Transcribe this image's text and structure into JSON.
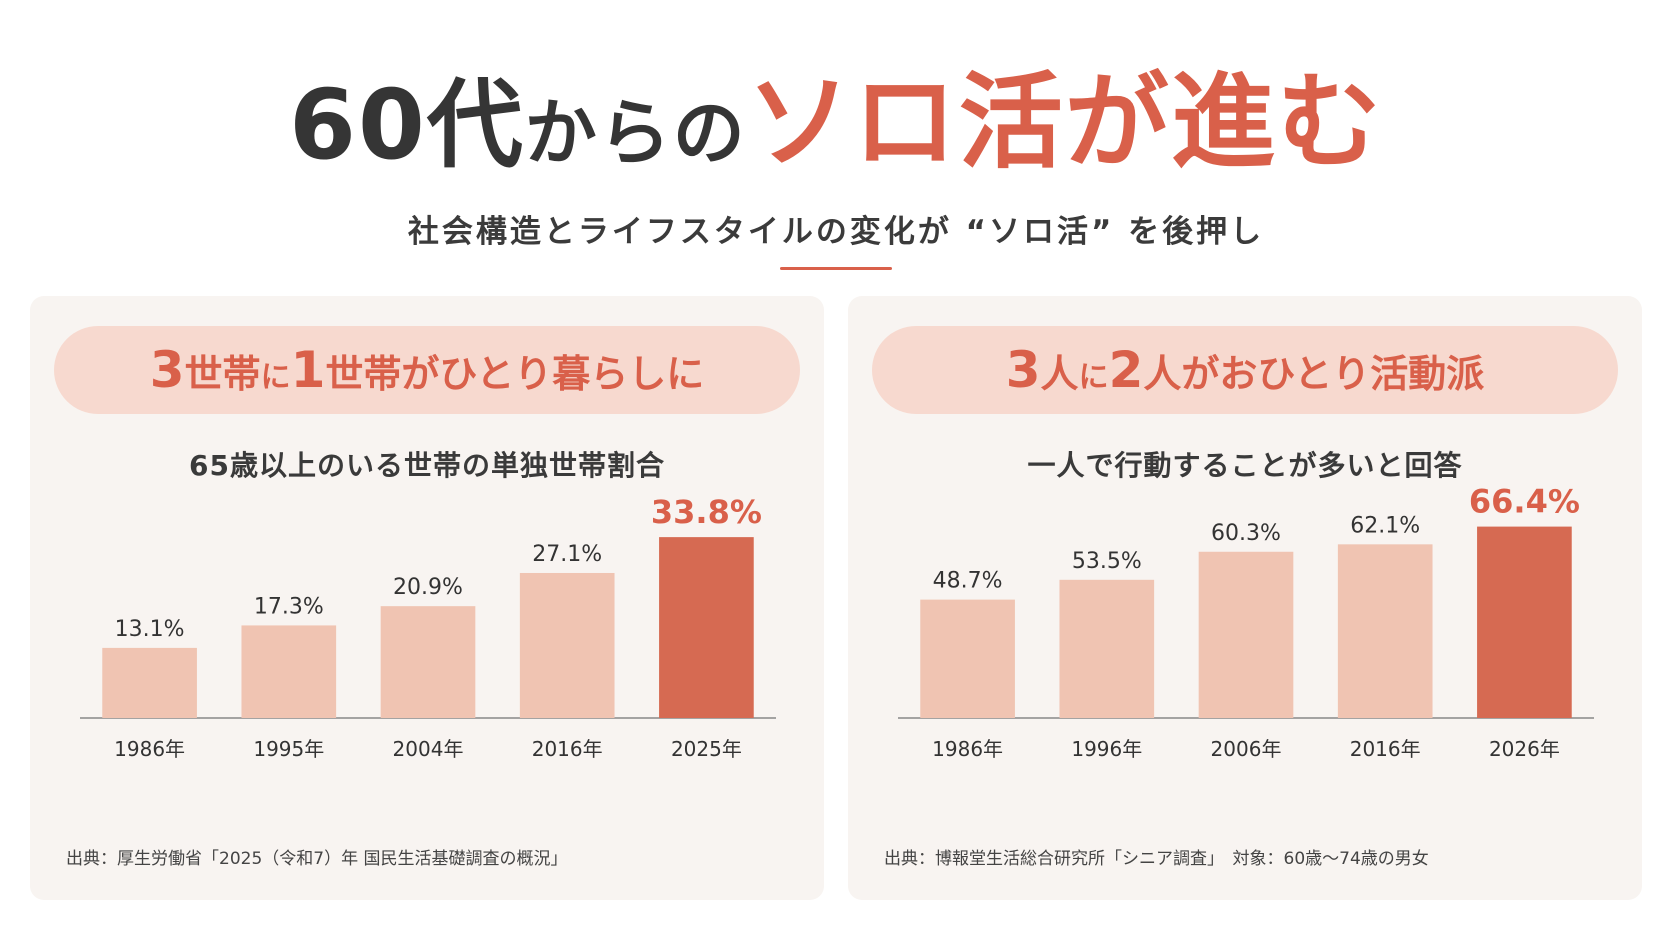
{
  "header": {
    "title_lead": "60代",
    "title_mid": "からの",
    "title_accent": "ソロ活",
    "title_particle": "が",
    "title_end": "進む",
    "subtitle": "社会構造とライフスタイルの変化が “ソロ活” を後押し"
  },
  "colors": {
    "accent": "#d9604a",
    "bar_normal": "#f0c4b2",
    "bar_highlight": "#d66a52",
    "pill": "#f7d9cf",
    "panel": "#f8f4f1"
  },
  "left_panel": {
    "headline": {
      "n1": "3",
      "w1": "世帯",
      "p1": "に",
      "n2": "1",
      "w2": "世帯",
      "rest": "がひとり暮らしに"
    },
    "chart_subtitle": "65歳以上のいる世帯の単独世帯割合",
    "source": "出典：厚生労働省「2025（令和7）年 国民生活基礎調査の概況」"
  },
  "right_panel": {
    "headline": {
      "n1": "3",
      "w1": "人",
      "p1": "に",
      "n2": "2",
      "w2": "人",
      "rest": "がおひとり活動派"
    },
    "chart_subtitle": "一人で行動することが多いと回答",
    "source": "出典：博報堂生活総合研究所「シニア調査」　対象：60歳〜74歳の男女"
  },
  "chart_data": [
    {
      "type": "bar",
      "title": "65歳以上のいる世帯の単独世帯割合",
      "categories": [
        "1986年",
        "1995年",
        "2004年",
        "2016年",
        "2025年"
      ],
      "values": [
        13.1,
        17.3,
        20.9,
        27.1,
        33.8
      ],
      "value_labels": [
        "13.1%",
        "17.3%",
        "20.9%",
        "27.1%",
        "33.8%"
      ],
      "highlight_index": 4,
      "ylim": [
        0,
        37
      ],
      "grid": false,
      "legend": "none"
    },
    {
      "type": "bar",
      "title": "一人で行動することが多いと回答",
      "categories": [
        "1986年",
        "1996年",
        "2006年",
        "2016年",
        "2026年"
      ],
      "values": [
        48.7,
        53.5,
        60.3,
        62.1,
        66.4
      ],
      "value_labels": [
        "48.7%",
        "53.5%",
        "60.3%",
        "62.1%",
        "66.4%"
      ],
      "highlight_index": 4,
      "ylim": [
        20,
        68
      ],
      "grid": false,
      "legend": "none"
    }
  ]
}
